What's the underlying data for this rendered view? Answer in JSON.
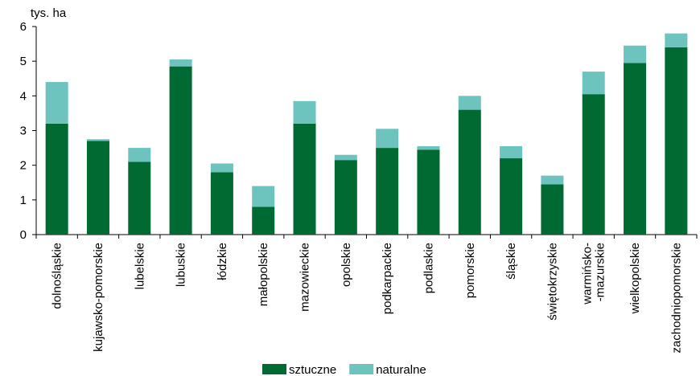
{
  "chart_data": {
    "type": "stacked_bar",
    "y_label": "tys. ha",
    "categories": [
      "dolnośląskie",
      "kujawsko-pomorskie",
      "lubelskie",
      "lubuskie",
      "łódzkie",
      "małopolskie",
      "mazowieckie",
      "opolskie",
      "podkarpackie",
      "podlaskie",
      "pomorskie",
      "śląskie",
      "świętokrzyskie",
      "warmińsko-\n-mazurskie",
      "wielkopolskie",
      "zachodniopomorskie"
    ],
    "series": [
      {
        "name": "sztuczne",
        "color": "#006a33",
        "values": [
          3.2,
          2.7,
          2.1,
          4.85,
          1.8,
          0.8,
          3.2,
          2.15,
          2.5,
          2.45,
          3.6,
          2.2,
          1.45,
          4.05,
          4.95,
          5.4
        ]
      },
      {
        "name": "naturalne",
        "color": "#6dc4bf",
        "values": [
          1.2,
          0.05,
          0.4,
          0.2,
          0.25,
          0.6,
          0.65,
          0.15,
          0.55,
          0.1,
          0.4,
          0.35,
          0.25,
          0.65,
          0.5,
          0.4
        ]
      }
    ],
    "ylim": [
      0,
      6
    ],
    "yticks": [
      0,
      1,
      2,
      3,
      4,
      5,
      6
    ],
    "grid": false,
    "legend": "bottom"
  }
}
